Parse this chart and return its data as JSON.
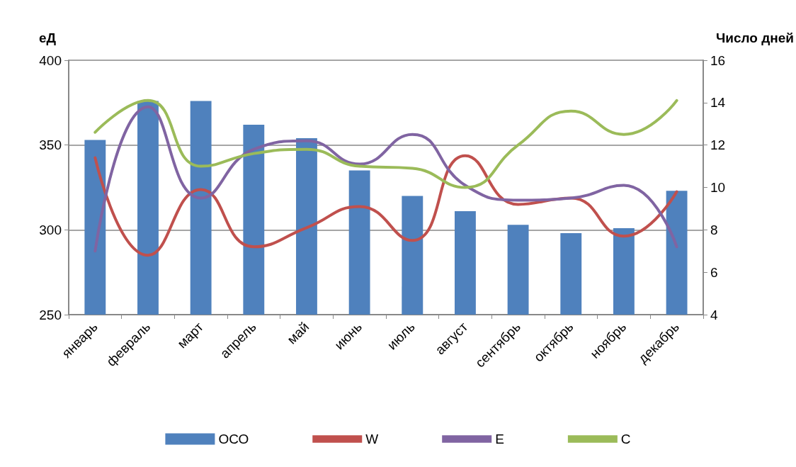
{
  "chart_data": {
    "type": "bar",
    "ylabel": "еД",
    "y2label": "Число дней",
    "categories": [
      "январь",
      "февраль",
      "март",
      "апрель",
      "май",
      "июнь",
      "июль",
      "август",
      "сентябрь",
      "октябрь",
      "ноябрь",
      "декабрь"
    ],
    "series": [
      {
        "name": "ОСО",
        "color": "#4f81bd",
        "values": [
          353,
          376,
          376,
          362,
          354,
          335,
          320,
          311,
          303,
          298,
          301,
          323
        ]
      },
      {
        "name": "W",
        "type": "line",
        "axis": "y2",
        "color": "#c0504d",
        "values": [
          11.4,
          6.8,
          9.9,
          7.2,
          8.1,
          9.1,
          7.5,
          11.5,
          9.2,
          9.5,
          7.7,
          9.8
        ]
      },
      {
        "name": "E",
        "type": "line",
        "axis": "y2",
        "color": "#8064a2",
        "values": [
          7.0,
          13.8,
          9.5,
          11.8,
          12.2,
          11.1,
          12.5,
          10.1,
          9.4,
          9.5,
          10.1,
          7.2
        ]
      },
      {
        "name": "C",
        "type": "line",
        "axis": "y2",
        "color": "#9bbb59",
        "values": [
          12.6,
          14.1,
          11.0,
          11.6,
          11.8,
          11.0,
          10.9,
          10.0,
          12.0,
          13.6,
          12.5,
          14.1
        ]
      }
    ],
    "ylim": [
      250,
      400
    ],
    "yticks": [
      250,
      300,
      350,
      400
    ],
    "y2lim": [
      4,
      16
    ],
    "y2ticks": [
      4,
      6,
      8,
      10,
      12,
      14,
      16
    ],
    "grid": "y",
    "legend": "bottom",
    "marker": "none",
    "line_style": "solid"
  }
}
